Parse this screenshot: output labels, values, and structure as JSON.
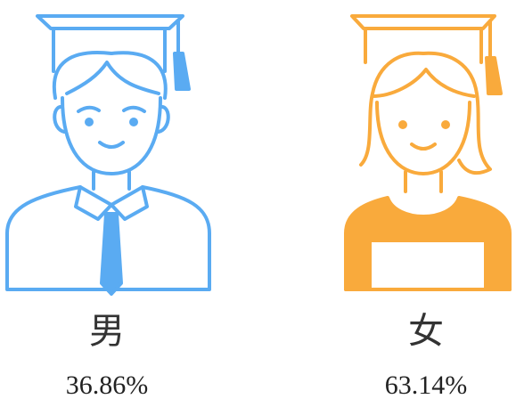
{
  "chart_data": {
    "type": "pictorial",
    "categories": [
      "男",
      "女"
    ],
    "values": [
      36.86,
      63.14
    ],
    "value_labels": [
      "36.86%",
      "63.14%"
    ],
    "colors": [
      "#5aabf2",
      "#f9aa3c"
    ]
  }
}
